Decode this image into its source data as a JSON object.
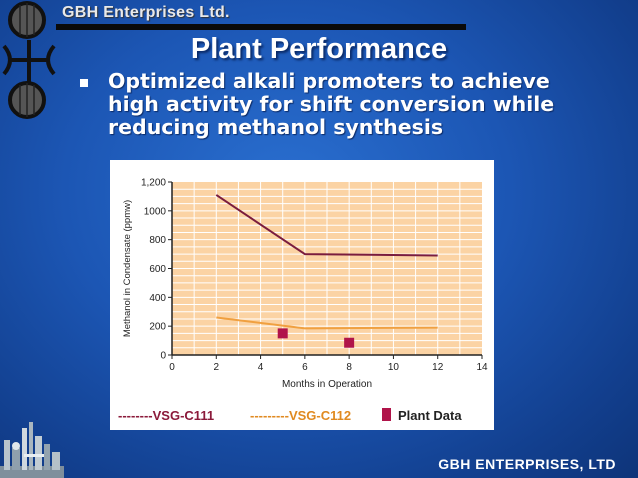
{
  "header": {
    "company": "GBH Enterprises Ltd."
  },
  "slide": {
    "title": "Plant Performance",
    "bullets": [
      {
        "line1": "Optimized alkali promoters to achieve",
        "line2": "high activity for shift conversion while",
        "line3": "reducing methanol synthesis"
      }
    ]
  },
  "footer": {
    "text": "GBH ENTERPRISES, LTD"
  },
  "colors": {
    "plot_bg": "#fbd3a4",
    "grid": "#ffffff",
    "series_c111": "#7a1c3e",
    "series_c112": "#f0a040",
    "plant_data": "#b0144a"
  },
  "legend": {
    "c111": "--------VSG-C111",
    "c112": "---------VSG-C112",
    "plant": "Plant Data"
  },
  "chart_data": {
    "type": "line",
    "xlabel": "Months in Operation",
    "ylabel": "Methanol in Condensate (ppmw)",
    "xlim": [
      0,
      14
    ],
    "ylim": [
      0,
      1200
    ],
    "x_ticks": [
      "0",
      "2",
      "4",
      "6",
      "8",
      "10",
      "12",
      "14"
    ],
    "y_ticks": [
      "0",
      "200",
      "400",
      "600",
      "800",
      "1000",
      "1,200"
    ],
    "grid": true,
    "legend_position": "bottom",
    "series": [
      {
        "name": "VSG-C111",
        "x": [
          2,
          6,
          12
        ],
        "y": [
          1110,
          700,
          690
        ]
      },
      {
        "name": "VSG-C112",
        "x": [
          2,
          6,
          12
        ],
        "y": [
          260,
          185,
          190
        ]
      },
      {
        "name": "Plant Data",
        "marker": "square",
        "x": [
          5,
          8
        ],
        "y": [
          150,
          85
        ]
      }
    ]
  }
}
